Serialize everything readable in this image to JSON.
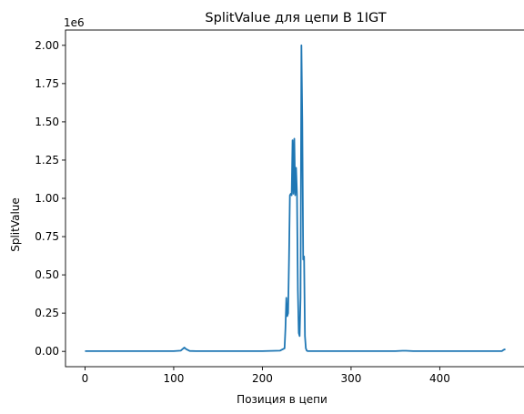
{
  "chart_data": {
    "type": "line",
    "title": "SplitValue для цепи B 1IGT",
    "xlabel": "Позиция в цепи",
    "ylabel": "SplitValue",
    "y_multiplier_label": "1e6",
    "xlim": [
      -22,
      496
    ],
    "ylim": [
      -0.1,
      2.1
    ],
    "xticks": [
      0,
      100,
      200,
      300,
      400
    ],
    "yticks": [
      0.0,
      0.25,
      0.5,
      0.75,
      1.0,
      1.25,
      1.5,
      1.75,
      2.0
    ],
    "ytick_labels": [
      "0.00",
      "0.25",
      "0.50",
      "0.75",
      "1.00",
      "1.25",
      "1.50",
      "1.75",
      "2.00"
    ],
    "grid": false,
    "legend": "none",
    "series": [
      {
        "color": "#1f77b4",
        "x": [
          0,
          50,
          100,
          108,
          112,
          114,
          118,
          125,
          150,
          200,
          220,
          225,
          226,
          227,
          228,
          229,
          230,
          231,
          232,
          233,
          234,
          235,
          236,
          237,
          238,
          239,
          240,
          241,
          242,
          243,
          244,
          245,
          246,
          247,
          248,
          249,
          250,
          251,
          252,
          260,
          300,
          350,
          358,
          362,
          370,
          400,
          450,
          470,
          472,
          474
        ],
        "y": [
          0.002,
          0.002,
          0.002,
          0.005,
          0.025,
          0.015,
          0.003,
          0.002,
          0.002,
          0.002,
          0.005,
          0.02,
          0.15,
          0.35,
          0.23,
          0.25,
          0.6,
          1.02,
          1.03,
          1.02,
          1.38,
          1.03,
          1.39,
          1.02,
          1.2,
          1.03,
          0.4,
          0.12,
          0.1,
          0.35,
          2.0,
          1.5,
          0.6,
          0.62,
          0.1,
          0.02,
          0.005,
          0.002,
          0.002,
          0.002,
          0.002,
          0.002,
          0.004,
          0.004,
          0.002,
          0.002,
          0.002,
          0.002,
          0.01,
          0.015
        ]
      }
    ]
  }
}
